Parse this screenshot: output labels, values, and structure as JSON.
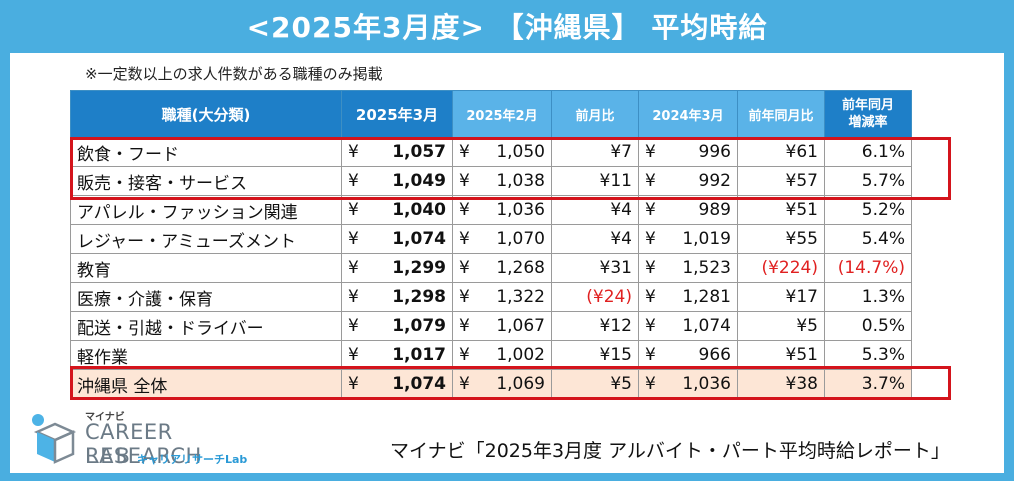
{
  "title": "<2025年3月度> 【沖縄県】 平均時給",
  "note": "※一定数以上の求人件数がある職種のみ掲載",
  "table": {
    "headers": [
      "職種(大分類)",
      "2025年3月",
      "2025年2月",
      "前月比",
      "2024年3月",
      "前年同月比",
      "前年同月\n増減率"
    ],
    "currency": "¥",
    "rows": [
      {
        "cat": "飲食・フード",
        "mar25": "1,057",
        "feb25": "1,050",
        "mom": "¥7",
        "mar24": "996",
        "yoy": "¥61",
        "rate": "6.1%"
      },
      {
        "cat": "販売・接客・サービス",
        "mar25": "1,049",
        "feb25": "1,038",
        "mom": "¥11",
        "mar24": "992",
        "yoy": "¥57",
        "rate": "5.7%"
      },
      {
        "cat": "アパレル・ファッション関連",
        "mar25": "1,040",
        "feb25": "1,036",
        "mom": "¥4",
        "mar24": "989",
        "yoy": "¥51",
        "rate": "5.2%"
      },
      {
        "cat": "レジャー・アミューズメント",
        "mar25": "1,074",
        "feb25": "1,070",
        "mom": "¥4",
        "mar24": "1,019",
        "yoy": "¥55",
        "rate": "5.4%"
      },
      {
        "cat": "教育",
        "mar25": "1,299",
        "feb25": "1,268",
        "mom": "¥31",
        "mar24": "1,523",
        "yoy": "(¥224)",
        "rate": "(14.7%)"
      },
      {
        "cat": "医療・介護・保育",
        "mar25": "1,298",
        "feb25": "1,322",
        "mom": "(¥24)",
        "mar24": "1,281",
        "yoy": "¥17",
        "rate": "1.3%"
      },
      {
        "cat": "配送・引越・ドライバー",
        "mar25": "1,079",
        "feb25": "1,067",
        "mom": "¥12",
        "mar24": "1,074",
        "yoy": "¥5",
        "rate": "0.5%"
      },
      {
        "cat": "軽作業",
        "mar25": "1,017",
        "feb25": "1,002",
        "mom": "¥15",
        "mar24": "966",
        "yoy": "¥51",
        "rate": "5.3%"
      },
      {
        "cat": "沖縄県 全体",
        "mar25": "1,074",
        "feb25": "1,069",
        "mom": "¥5",
        "mar24": "1,036",
        "yoy": "¥38",
        "rate": "3.7%"
      }
    ],
    "negative_color": "#e02020"
  },
  "logo": {
    "small": "マイナビ",
    "line1": "CAREER RESEARCH",
    "line2": "LAB",
    "sub": "キャリアリサーチLab"
  },
  "source": "マイナビ「2025年3月度 アルバイト・パート平均時給レポート」",
  "colors": {
    "background": "#4aaee0",
    "header": "#5ab3e8",
    "header_lead": "#1e7fc8",
    "total_row": "#fde6d6",
    "highlight": "#d4141c"
  }
}
